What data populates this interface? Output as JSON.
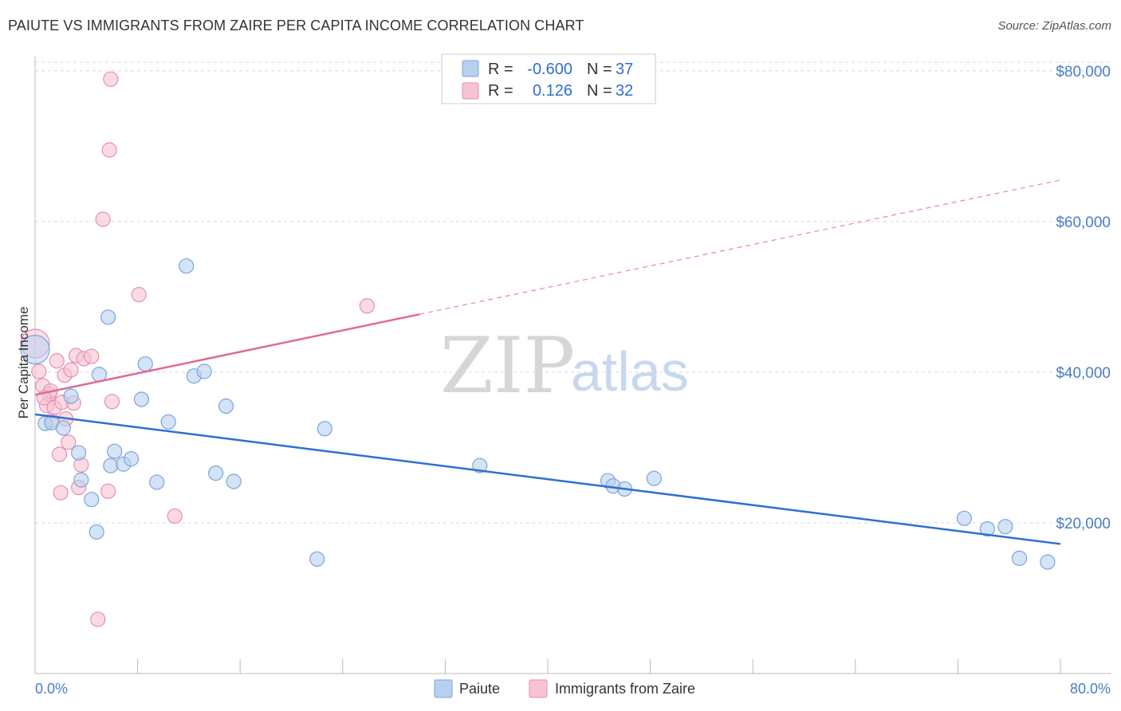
{
  "title": "PAIUTE VS IMMIGRANTS FROM ZAIRE PER CAPITA INCOME CORRELATION CHART",
  "source": "Source: ZipAtlas.com",
  "watermark": {
    "part1": "ZIP",
    "part2": "atlas"
  },
  "colors": {
    "blue_fill": "#b8d0f0",
    "blue_stroke": "#7ba5dd",
    "blue_line": "#2e6fd2",
    "pink_fill": "#f7c3d3",
    "pink_stroke": "#e68fab",
    "pink_line": "#e06a93",
    "grid": "#d8d8d8",
    "axis_text": "#4a7cc7"
  },
  "stats": {
    "row1": {
      "r_label": "R =",
      "r_value": "-0.600",
      "n_label": "N =",
      "n_value": "37"
    },
    "row2": {
      "r_label": "R =",
      "r_value": "0.126",
      "n_label": "N =",
      "n_value": "32"
    }
  },
  "chart_data": {
    "type": "scatter",
    "xlabel": "",
    "ylabel": "Per Capita Income",
    "xlim": [
      0,
      80
    ],
    "ylim": [
      0,
      82000
    ],
    "x_tick_labels": {
      "min": "0.0%",
      "max": "80.0%"
    },
    "y_ticks": [
      {
        "value": 20000,
        "label": "$20,000"
      },
      {
        "value": 40000,
        "label": "$40,000"
      },
      {
        "value": 60000,
        "label": "$60,000"
      },
      {
        "value": 80000,
        "label": "$80,000"
      }
    ],
    "grid": true,
    "legend_position": "bottom-center",
    "series": [
      {
        "name": "Paiute",
        "color": "blue",
        "r": -0.6,
        "n": 37,
        "trend": {
          "x0": 0,
          "y0": 34400,
          "x1": 80,
          "y1": 17200,
          "solid_to": 80
        },
        "points": [
          [
            0,
            43000
          ],
          [
            0.8,
            33200
          ],
          [
            1.3,
            33300
          ],
          [
            2.2,
            32600
          ],
          [
            2.8,
            36800
          ],
          [
            3.4,
            29300
          ],
          [
            3.6,
            25700
          ],
          [
            4.4,
            23100
          ],
          [
            4.8,
            18800
          ],
          [
            5.0,
            39700
          ],
          [
            5.7,
            47300
          ],
          [
            5.9,
            27600
          ],
          [
            6.2,
            29500
          ],
          [
            6.9,
            27800
          ],
          [
            7.5,
            28500
          ],
          [
            8.3,
            36400
          ],
          [
            8.6,
            41100
          ],
          [
            9.5,
            25400
          ],
          [
            10.4,
            33400
          ],
          [
            11.8,
            54100
          ],
          [
            12.4,
            39500
          ],
          [
            13.2,
            40100
          ],
          [
            14.1,
            26600
          ],
          [
            14.9,
            35500
          ],
          [
            15.5,
            25500
          ],
          [
            22.0,
            15200
          ],
          [
            22.6,
            32500
          ],
          [
            34.7,
            27600
          ],
          [
            44.7,
            25600
          ],
          [
            45.1,
            24900
          ],
          [
            46.0,
            24500
          ],
          [
            48.3,
            25900
          ],
          [
            72.5,
            20600
          ],
          [
            74.3,
            19200
          ],
          [
            75.7,
            19500
          ],
          [
            76.8,
            15300
          ],
          [
            79.0,
            14800
          ]
        ]
      },
      {
        "name": "Immigrants from Zaire",
        "color": "pink",
        "r": 0.126,
        "n": 32,
        "trend": {
          "x0": 0,
          "y0": 37000,
          "x1": 80,
          "y1": 65500,
          "solid_to": 30
        },
        "points": [
          [
            0,
            43800
          ],
          [
            0.3,
            40100
          ],
          [
            0.6,
            38200
          ],
          [
            0.9,
            35600
          ],
          [
            1.1,
            37100
          ],
          [
            1.3,
            33600
          ],
          [
            1.5,
            35300
          ],
          [
            1.7,
            41500
          ],
          [
            1.9,
            29100
          ],
          [
            2.0,
            24000
          ],
          [
            2.1,
            36000
          ],
          [
            2.3,
            39600
          ],
          [
            2.6,
            30700
          ],
          [
            2.8,
            40300
          ],
          [
            3.0,
            35900
          ],
          [
            3.2,
            42200
          ],
          [
            3.4,
            24700
          ],
          [
            3.6,
            27700
          ],
          [
            3.8,
            41800
          ],
          [
            4.4,
            42100
          ],
          [
            4.9,
            7200
          ],
          [
            5.3,
            60300
          ],
          [
            5.7,
            24200
          ],
          [
            5.8,
            69500
          ],
          [
            5.9,
            78900
          ],
          [
            6.0,
            36100
          ],
          [
            8.1,
            50300
          ],
          [
            10.9,
            20900
          ],
          [
            25.9,
            48800
          ],
          [
            1.2,
            37500
          ],
          [
            2.4,
            33800
          ],
          [
            0.7,
            36600
          ]
        ]
      }
    ]
  }
}
